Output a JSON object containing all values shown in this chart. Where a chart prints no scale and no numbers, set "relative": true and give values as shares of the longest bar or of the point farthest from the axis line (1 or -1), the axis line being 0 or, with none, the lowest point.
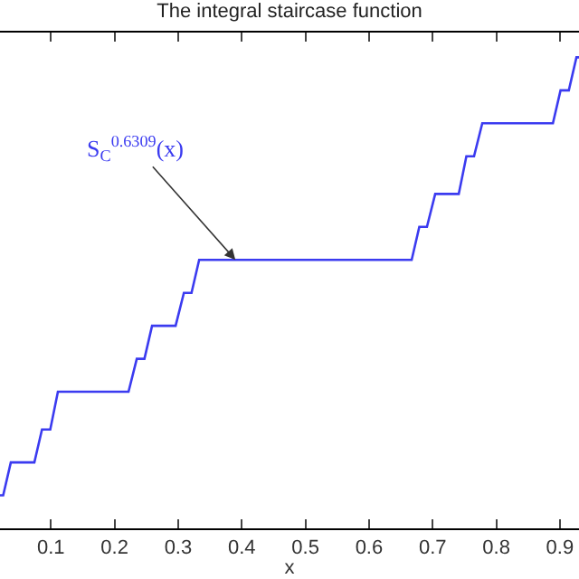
{
  "chart_data": {
    "type": "line",
    "title": "The integral staircase function",
    "xlabel": "x",
    "relative": true,
    "xlim": [
      0.02,
      0.93
    ],
    "xticks": [
      0.1,
      0.2,
      0.3,
      0.4,
      0.5,
      0.6,
      0.7,
      0.8,
      0.9
    ],
    "marker": "none",
    "line_style": "solid",
    "series": [
      {
        "color": "#3b3bf0",
        "x": [
          0.02,
          0.025,
          0.037,
          0.074,
          0.086,
          0.099,
          0.111,
          0.222,
          0.235,
          0.247,
          0.259,
          0.296,
          0.309,
          0.321,
          0.333,
          0.667,
          0.679,
          0.691,
          0.704,
          0.741,
          0.753,
          0.765,
          0.778,
          0.889,
          0.901,
          0.914,
          0.926,
          0.93
        ],
        "values": [
          0.07,
          0.07,
          0.14,
          0.14,
          0.21,
          0.21,
          0.29,
          0.29,
          0.36,
          0.36,
          0.43,
          0.43,
          0.5,
          0.5,
          0.57,
          0.57,
          0.64,
          0.64,
          0.71,
          0.71,
          0.79,
          0.79,
          0.86,
          0.86,
          0.93,
          0.93,
          1.0,
          1.0
        ]
      }
    ],
    "annotations": [
      {
        "text": "S$_{C}$$^{0.6309}$(x)",
        "x": 0.39,
        "y": 0.57
      }
    ]
  }
}
